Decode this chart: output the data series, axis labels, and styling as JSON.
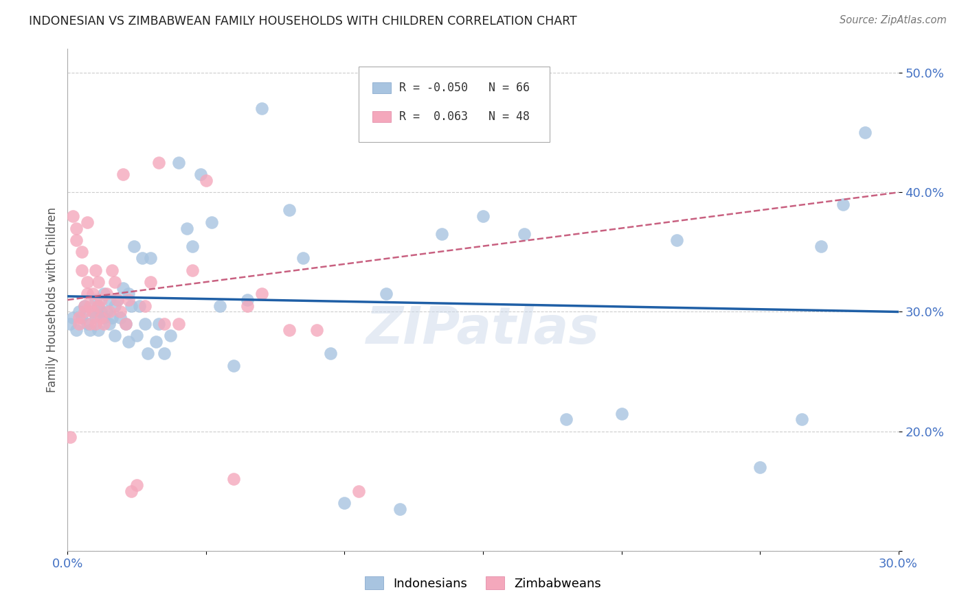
{
  "title": "INDONESIAN VS ZIMBABWEAN FAMILY HOUSEHOLDS WITH CHILDREN CORRELATION CHART",
  "source": "Source: ZipAtlas.com",
  "ylabel": "Family Households with Children",
  "xlim": [
    0.0,
    0.3
  ],
  "ylim": [
    0.1,
    0.52
  ],
  "indonesian_color": "#a8c4e0",
  "zimbabwean_color": "#f4a8bc",
  "indonesian_R": -0.05,
  "indonesian_N": 66,
  "zimbabwean_R": 0.063,
  "zimbabwean_N": 48,
  "trend_line_indo_color": "#1f5fa6",
  "trend_line_zimb_color": "#c86080",
  "legend_label_indo": "Indonesians",
  "legend_label_zimb": "Zimbabweans",
  "indonesian_x": [
    0.001,
    0.002,
    0.003,
    0.004,
    0.005,
    0.006,
    0.007,
    0.008,
    0.009,
    0.01,
    0.01,
    0.011,
    0.011,
    0.012,
    0.013,
    0.013,
    0.014,
    0.015,
    0.015,
    0.016,
    0.017,
    0.017,
    0.018,
    0.019,
    0.02,
    0.021,
    0.022,
    0.022,
    0.023,
    0.024,
    0.025,
    0.026,
    0.027,
    0.028,
    0.029,
    0.03,
    0.032,
    0.033,
    0.035,
    0.037,
    0.04,
    0.043,
    0.045,
    0.048,
    0.052,
    0.055,
    0.06,
    0.065,
    0.07,
    0.08,
    0.085,
    0.095,
    0.1,
    0.115,
    0.12,
    0.135,
    0.15,
    0.165,
    0.18,
    0.2,
    0.22,
    0.25,
    0.265,
    0.272,
    0.28,
    0.288
  ],
  "indonesian_y": [
    0.29,
    0.295,
    0.285,
    0.3,
    0.295,
    0.305,
    0.29,
    0.285,
    0.3,
    0.31,
    0.295,
    0.305,
    0.285,
    0.3,
    0.295,
    0.315,
    0.3,
    0.29,
    0.31,
    0.295,
    0.305,
    0.28,
    0.31,
    0.295,
    0.32,
    0.29,
    0.275,
    0.315,
    0.305,
    0.355,
    0.28,
    0.305,
    0.345,
    0.29,
    0.265,
    0.345,
    0.275,
    0.29,
    0.265,
    0.28,
    0.425,
    0.37,
    0.355,
    0.415,
    0.375,
    0.305,
    0.255,
    0.31,
    0.47,
    0.385,
    0.345,
    0.265,
    0.14,
    0.315,
    0.135,
    0.365,
    0.38,
    0.365,
    0.21,
    0.215,
    0.36,
    0.17,
    0.21,
    0.355,
    0.39,
    0.45
  ],
  "zimbabwean_x": [
    0.001,
    0.002,
    0.003,
    0.003,
    0.004,
    0.004,
    0.005,
    0.005,
    0.006,
    0.006,
    0.007,
    0.007,
    0.007,
    0.008,
    0.008,
    0.009,
    0.009,
    0.01,
    0.01,
    0.011,
    0.011,
    0.012,
    0.012,
    0.013,
    0.014,
    0.015,
    0.016,
    0.017,
    0.018,
    0.019,
    0.02,
    0.021,
    0.022,
    0.023,
    0.025,
    0.028,
    0.03,
    0.033,
    0.035,
    0.04,
    0.045,
    0.05,
    0.06,
    0.065,
    0.07,
    0.08,
    0.09,
    0.105
  ],
  "zimbabwean_y": [
    0.195,
    0.38,
    0.36,
    0.37,
    0.295,
    0.29,
    0.35,
    0.335,
    0.305,
    0.3,
    0.315,
    0.325,
    0.375,
    0.305,
    0.29,
    0.3,
    0.315,
    0.335,
    0.29,
    0.305,
    0.325,
    0.295,
    0.31,
    0.29,
    0.315,
    0.3,
    0.335,
    0.325,
    0.31,
    0.3,
    0.415,
    0.29,
    0.31,
    0.15,
    0.155,
    0.305,
    0.325,
    0.425,
    0.29,
    0.29,
    0.335,
    0.41,
    0.16,
    0.305,
    0.315,
    0.285,
    0.285,
    0.15
  ],
  "indo_trend_x0": 0.0,
  "indo_trend_y0": 0.313,
  "indo_trend_x1": 0.3,
  "indo_trend_y1": 0.3,
  "zimb_trend_x0": 0.0,
  "zimb_trend_y0": 0.31,
  "zimb_trend_x1": 0.3,
  "zimb_trend_y1": 0.4
}
